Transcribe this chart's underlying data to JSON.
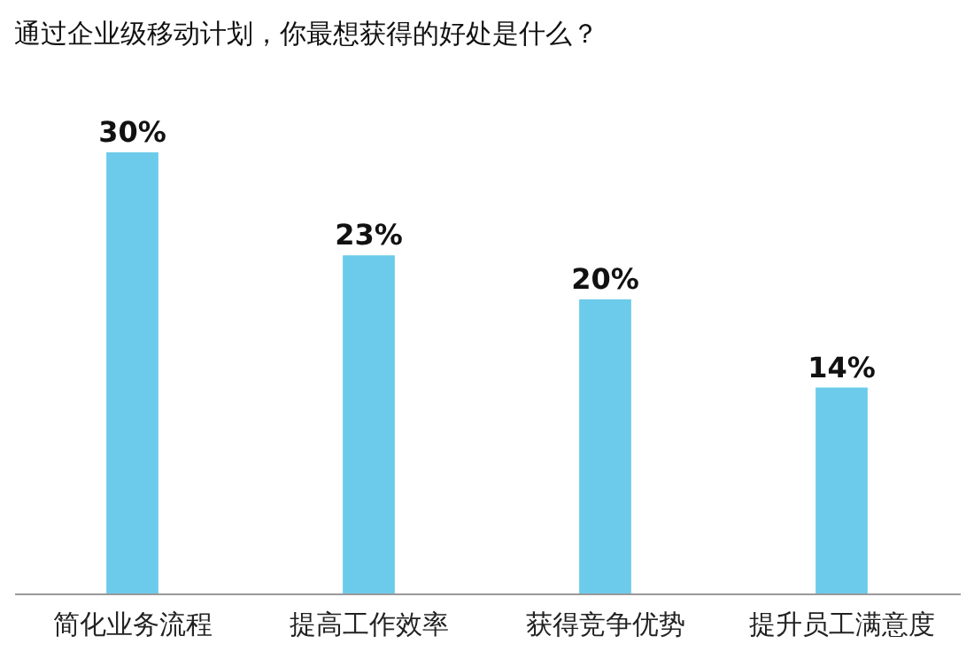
{
  "chart_data": {
    "type": "bar",
    "title": "通过企业级移动计划，你最想获得的好处是什么？",
    "categories": [
      "简化业务流程",
      "提高工作效率",
      "获得竞争优势",
      "提升员工满意度"
    ],
    "values": [
      30,
      23,
      20,
      14
    ],
    "value_labels": [
      "30%",
      "23%",
      "20%",
      "14%"
    ],
    "color": "#6ccbeb",
    "grid": false
  }
}
